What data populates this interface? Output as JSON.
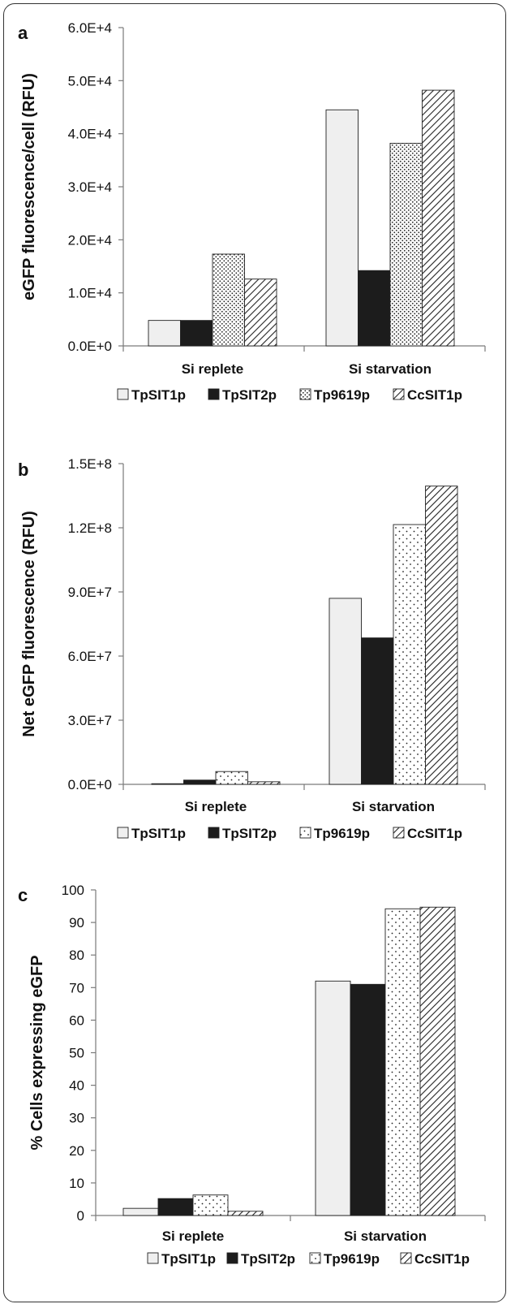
{
  "chart_data": [
    {
      "panel": "a",
      "type": "bar",
      "categories": [
        "Si replete",
        "Si starvation"
      ],
      "series": [
        {
          "name": "TpSIT1p",
          "values": [
            4800,
            44500
          ],
          "fill": "solid-light"
        },
        {
          "name": "TpSIT2p",
          "values": [
            4800,
            14200
          ],
          "fill": "solid-dark"
        },
        {
          "name": "Tp9619p",
          "values": [
            17300,
            38200
          ],
          "fill": "dots-dense"
        },
        {
          "name": "CcSIT1p",
          "values": [
            12600,
            48200
          ],
          "fill": "diagonal"
        }
      ],
      "ylabel": "eGFP fluorescence/cell (RFU)",
      "ylim": [
        0,
        60000
      ],
      "yticks": [
        0,
        10000,
        20000,
        30000,
        40000,
        50000,
        60000
      ],
      "ytick_labels": [
        "0.0E+0",
        "1.0E+4",
        "2.0E+4",
        "3.0E+4",
        "4.0E+4",
        "5.0E+4",
        "6.0E+4"
      ],
      "legend_position": "bottom",
      "grid": false
    },
    {
      "panel": "b",
      "type": "bar",
      "categories": [
        "Si replete",
        "Si starvation"
      ],
      "series": [
        {
          "name": "TpSIT1p",
          "values": [
            300000,
            87000000
          ],
          "fill": "solid-light"
        },
        {
          "name": "TpSIT2p",
          "values": [
            2000000,
            68500000
          ],
          "fill": "solid-dark"
        },
        {
          "name": "Tp9619p",
          "values": [
            6000000,
            121500000
          ],
          "fill": "dots-sparse"
        },
        {
          "name": "CcSIT1p",
          "values": [
            1200000,
            139500000
          ],
          "fill": "diagonal"
        }
      ],
      "ylabel": "Net eGFP fluorescence (RFU)",
      "ylim": [
        0,
        150000000
      ],
      "yticks": [
        0,
        30000000,
        60000000,
        90000000,
        120000000,
        150000000
      ],
      "ytick_labels": [
        "0.0E+0",
        "3.0E+7",
        "6.0E+7",
        "9.0E+7",
        "1.2E+8",
        "1.5E+8"
      ],
      "legend_position": "bottom",
      "grid": false
    },
    {
      "panel": "c",
      "type": "bar",
      "categories": [
        "Si replete",
        "Si starvation"
      ],
      "series": [
        {
          "name": "TpSIT1p",
          "values": [
            2.2,
            72
          ],
          "fill": "solid-light"
        },
        {
          "name": "TpSIT2p",
          "values": [
            5.2,
            71
          ],
          "fill": "solid-dark"
        },
        {
          "name": "Tp9619p",
          "values": [
            6.3,
            94.2
          ],
          "fill": "dots-sparse"
        },
        {
          "name": "CcSIT1p",
          "values": [
            1.3,
            94.7
          ],
          "fill": "diagonal"
        }
      ],
      "ylabel": "% Cells expressing eGFP",
      "ylim": [
        0,
        100
      ],
      "yticks": [
        0,
        10,
        20,
        30,
        40,
        50,
        60,
        70,
        80,
        90,
        100
      ],
      "ytick_labels": [
        "0",
        "10",
        "20",
        "30",
        "40",
        "50",
        "60",
        "70",
        "80",
        "90",
        "100"
      ],
      "legend_position": "bottom",
      "grid": false
    }
  ],
  "colors": {
    "solid-light": "#efefef",
    "solid-dark": "#1c1c1c",
    "pattern": "#222222",
    "bar_outline": "#222222",
    "axis": "#7a7a7a"
  }
}
